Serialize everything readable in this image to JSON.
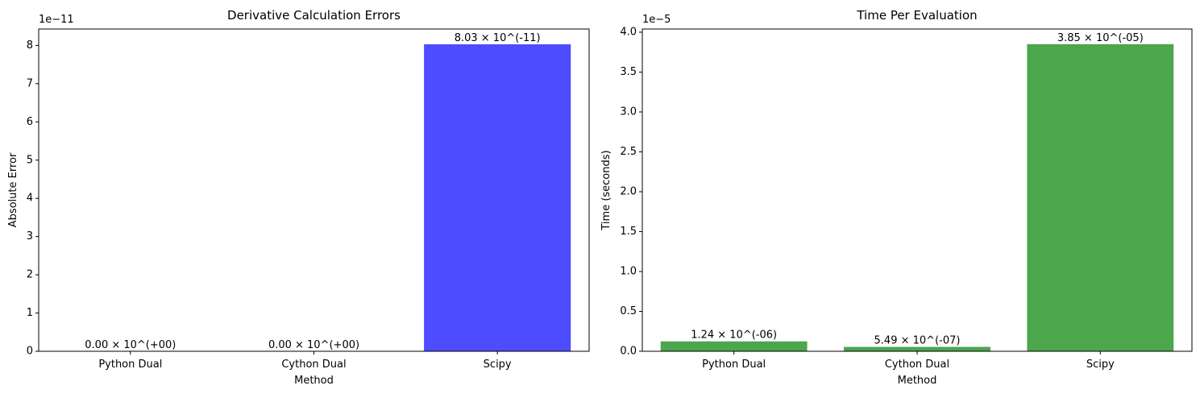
{
  "chart_data": [
    {
      "type": "bar",
      "title": "Derivative Calculation Errors",
      "xlabel": "Method",
      "ylabel": "Absolute Error",
      "offset_label": "1e−11",
      "categories": [
        "Python Dual",
        "Cython Dual",
        "Scipy"
      ],
      "values": [
        0,
        0,
        8.03e-11
      ],
      "bar_labels": [
        "0.00 × 10^(+00)",
        "0.00 × 10^(+00)",
        "8.03 × 10^(-11)"
      ],
      "ylim": [
        0,
        8.43e-11
      ],
      "yticks": [
        0,
        1e-11,
        2e-11,
        3e-11,
        4e-11,
        5e-11,
        6e-11,
        7e-11,
        8e-11
      ],
      "ytick_labels": [
        "0",
        "1",
        "2",
        "3",
        "4",
        "5",
        "6",
        "7",
        "8"
      ],
      "bar_color": "#4d4dff",
      "grid": false
    },
    {
      "type": "bar",
      "title": "Time Per Evaluation",
      "xlabel": "Method",
      "ylabel": "Time (seconds)",
      "offset_label": "1e−5",
      "categories": [
        "Python Dual",
        "Cython Dual",
        "Scipy"
      ],
      "values": [
        1.24e-06,
        5.49e-07,
        3.85e-05
      ],
      "bar_labels": [
        "1.24 × 10^(-06)",
        "5.49 × 10^(-07)",
        "3.85 × 10^(-05)"
      ],
      "ylim": [
        0,
        4.04e-05
      ],
      "yticks": [
        0,
        5e-06,
        1e-05,
        1.5e-05,
        2e-05,
        2.5e-05,
        3e-05,
        3.5e-05,
        4e-05
      ],
      "ytick_labels": [
        "0.0",
        "0.5",
        "1.0",
        "1.5",
        "2.0",
        "2.5",
        "3.0",
        "3.5",
        "4.0"
      ],
      "bar_color": "#4ca64c",
      "grid": false
    }
  ]
}
